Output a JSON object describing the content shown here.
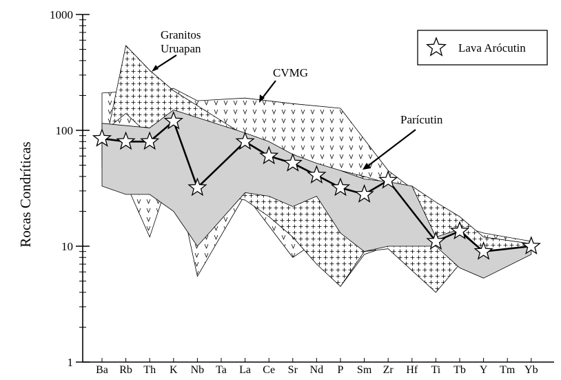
{
  "chart_data": {
    "type": "line",
    "ylabel": "Rocas Condríticas",
    "xlabel": "",
    "yscale": "log",
    "ylim": [
      1,
      1000
    ],
    "y_ticks": [
      {
        "value": 1,
        "label": "1"
      },
      {
        "value": 10,
        "label": "10"
      },
      {
        "value": 100,
        "label": "100"
      },
      {
        "value": 1000,
        "label": "1000"
      }
    ],
    "categories": [
      "Ba",
      "Rb",
      "Th",
      "K",
      "Nb",
      "Ta",
      "La",
      "Ce",
      "Sr",
      "Nd",
      "P",
      "Sm",
      "Zr",
      "Hf",
      "Ti",
      "Tb",
      "Y",
      "Tm",
      "Yb"
    ],
    "series": [
      {
        "name": "Lava Arócutin",
        "marker": "star",
        "points": [
          {
            "x": "Ba",
            "y": 85
          },
          {
            "x": "Rb",
            "y": 80
          },
          {
            "x": "Th",
            "y": 80
          },
          {
            "x": "K",
            "y": 120
          },
          {
            "x": "Nb",
            "y": 32
          },
          {
            "x": "La",
            "y": 80
          },
          {
            "x": "Ce",
            "y": 60
          },
          {
            "x": "Sr",
            "y": 52
          },
          {
            "x": "Nd",
            "y": 41
          },
          {
            "x": "P",
            "y": 32
          },
          {
            "x": "Sm",
            "y": 28
          },
          {
            "x": "Zr",
            "y": 37
          },
          {
            "x": "Ti",
            "y": 11
          },
          {
            "x": "Tb",
            "y": 13.5
          },
          {
            "x": "Y",
            "y": 9
          },
          {
            "x": "Yb",
            "y": 10
          }
        ]
      }
    ],
    "fields": [
      {
        "label": "CVMG",
        "pattern": "v",
        "upper": [
          [
            "Ba",
            210
          ],
          [
            "K",
            230
          ],
          [
            "Nb",
            180
          ],
          [
            "La",
            190
          ],
          [
            "Sr",
            170
          ],
          [
            "P",
            155
          ],
          [
            "Zr",
            45
          ],
          [
            "Ti",
            22
          ],
          [
            "Tb",
            15
          ],
          [
            "Y",
            13
          ],
          [
            "Yb",
            11
          ]
        ],
        "lower": [
          [
            "Yb",
            10
          ],
          [
            "Y",
            9.5
          ],
          [
            "Tb",
            8.5
          ],
          [
            "Ti",
            4
          ],
          [
            "Zr",
            10
          ],
          [
            "Sm",
            8.5
          ],
          [
            "P",
            4.5
          ],
          [
            "Nd",
            11
          ],
          [
            "Sr",
            8
          ],
          [
            "La",
            28
          ],
          [
            "Nb",
            5.5
          ],
          [
            "K",
            50
          ],
          [
            "Th",
            12
          ],
          [
            "Rb",
            35
          ],
          [
            "Ba",
            48
          ]
        ]
      },
      {
        "label": "Granitos Uruapan",
        "pattern": "crosshatch",
        "upper": [
          [
            "Ba",
            55
          ],
          [
            "Rb",
            540
          ],
          [
            "Th",
            330
          ],
          [
            "K",
            220
          ],
          [
            "La",
            90
          ],
          [
            "Ce",
            75
          ],
          [
            "Sr",
            60
          ],
          [
            "Nd",
            50
          ],
          [
            "P",
            45
          ],
          [
            "Sm",
            40
          ],
          [
            "Zr",
            35
          ],
          [
            "Hf",
            33
          ],
          [
            "Ti",
            24
          ],
          [
            "Tb",
            18
          ],
          [
            "Y",
            12
          ],
          [
            "Yb",
            10.5
          ]
        ],
        "lower": [
          [
            "Yb",
            9.5
          ],
          [
            "Y",
            6.5
          ],
          [
            "Tb",
            7
          ],
          [
            "Ti",
            4
          ],
          [
            "Zr",
            9.5
          ],
          [
            "Sm",
            9
          ],
          [
            "P",
            4.5
          ],
          [
            "Nd",
            7
          ],
          [
            "Sr",
            12
          ],
          [
            "Ce",
            18
          ],
          [
            "La",
            25
          ],
          [
            "K",
            35
          ],
          [
            "Th",
            90
          ],
          [
            "Rb",
            140
          ],
          [
            "Ba",
            95
          ]
        ]
      },
      {
        "label": "Parícutin",
        "pattern": "gray",
        "upper": [
          [
            "Ba",
            115
          ],
          [
            "Th",
            105
          ],
          [
            "K",
            150
          ],
          [
            "La",
            95
          ],
          [
            "Ce",
            80
          ],
          [
            "Sr",
            62
          ],
          [
            "Nd",
            52
          ],
          [
            "P",
            45
          ],
          [
            "Sm",
            38
          ],
          [
            "Zr",
            36
          ],
          [
            "Hf",
            33
          ],
          [
            "Ti",
            12
          ],
          [
            "Tb",
            14
          ],
          [
            "Y",
            9
          ],
          [
            "Yb",
            10
          ]
        ],
        "lower": [
          [
            "Yb",
            8.5
          ],
          [
            "Y",
            5.3
          ],
          [
            "Tb",
            6.5
          ],
          [
            "Ti",
            10
          ],
          [
            "Zr",
            10
          ],
          [
            "Sm",
            9
          ],
          [
            "P",
            13
          ],
          [
            "Nd",
            27
          ],
          [
            "Sr",
            22
          ],
          [
            "Ce",
            27
          ],
          [
            "La",
            29
          ],
          [
            "Nb",
            10
          ],
          [
            "K",
            20
          ],
          [
            "Th",
            28
          ],
          [
            "Rb",
            28
          ],
          [
            "Ba",
            33
          ]
        ]
      }
    ],
    "annotations": [
      {
        "text_lines": [
          "Granitos",
          "Uruapan"
        ]
      },
      {
        "text_lines": [
          "CVMG"
        ]
      },
      {
        "text_lines": [
          "Parícutin"
        ]
      }
    ],
    "legend": {
      "placement": "top-right",
      "label": "Lava Arócutin"
    },
    "grid": false,
    "colors": {
      "field_gray": "#d2d2d2",
      "line": "#000000",
      "background": "#ffffff"
    }
  }
}
